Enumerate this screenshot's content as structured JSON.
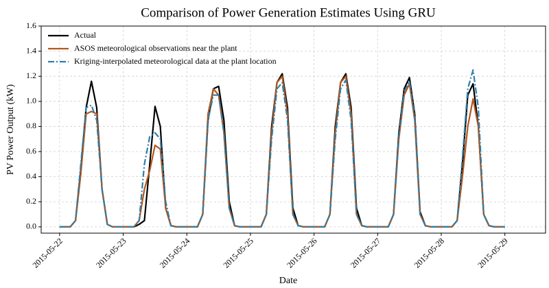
{
  "chart_data": {
    "type": "line",
    "title": "Comparison of Power Generation Estimates Using GRU",
    "xlabel": "Date",
    "ylabel": "PV Power Output (kW)",
    "xlim": [
      -0.29,
      7.64
    ],
    "ylim": [
      -0.05,
      1.6
    ],
    "xticks": [
      {
        "value": 0,
        "label": "2015-05-22"
      },
      {
        "value": 1,
        "label": "2015-05-23"
      },
      {
        "value": 2,
        "label": "2015-05-24"
      },
      {
        "value": 3,
        "label": "2015-05-25"
      },
      {
        "value": 4,
        "label": "2015-05-26"
      },
      {
        "value": 5,
        "label": "2015-05-27"
      },
      {
        "value": 6,
        "label": "2015-05-28"
      },
      {
        "value": 7,
        "label": "2015-05-29"
      }
    ],
    "yticks": [
      {
        "value": 0,
        "label": "0.0"
      },
      0.2,
      0.4,
      0.6,
      0.8,
      {
        "value": 1,
        "label": "1.0"
      },
      1.2,
      1.4,
      1.6
    ],
    "grid": true,
    "legend": "upper left",
    "x": [
      0,
      0.083,
      0.167,
      0.25,
      0.333,
      0.417,
      0.5,
      0.583,
      0.667,
      0.75,
      0.833,
      0.917,
      1,
      1.083,
      1.167,
      1.25,
      1.333,
      1.417,
      1.5,
      1.583,
      1.667,
      1.75,
      1.833,
      1.917,
      2,
      2.083,
      2.167,
      2.25,
      2.333,
      2.417,
      2.5,
      2.583,
      2.667,
      2.75,
      2.833,
      2.917,
      3,
      3.083,
      3.167,
      3.25,
      3.333,
      3.417,
      3.5,
      3.583,
      3.667,
      3.75,
      3.833,
      3.917,
      4,
      4.083,
      4.167,
      4.25,
      4.333,
      4.417,
      4.5,
      4.583,
      4.667,
      4.75,
      4.833,
      4.917,
      5,
      5.083,
      5.167,
      5.25,
      5.333,
      5.417,
      5.5,
      5.583,
      5.667,
      5.75,
      5.833,
      5.917,
      6,
      6.083,
      6.167,
      6.25,
      6.333,
      6.417,
      6.5,
      6.583,
      6.667,
      6.75,
      6.833,
      6.917,
      7
    ],
    "series": [
      {
        "name": "Actual",
        "color": "#000000",
        "linestyle": "solid",
        "values": [
          0,
          0,
          0,
          0.05,
          0.45,
          0.95,
          1.16,
          0.95,
          0.3,
          0.02,
          0,
          0,
          0,
          0,
          0,
          0.02,
          0.05,
          0.5,
          0.96,
          0.8,
          0.15,
          0.01,
          0,
          0,
          0,
          0,
          0,
          0.1,
          0.85,
          1.1,
          1.12,
          0.85,
          0.2,
          0.01,
          0,
          0,
          0,
          0,
          0,
          0.1,
          0.8,
          1.15,
          1.22,
          0.95,
          0.15,
          0.01,
          0,
          0,
          0,
          0,
          0,
          0.1,
          0.8,
          1.15,
          1.22,
          0.95,
          0.15,
          0.01,
          0,
          0,
          0,
          0,
          0,
          0.1,
          0.75,
          1.1,
          1.19,
          0.9,
          0.12,
          0.01,
          0,
          0,
          0,
          0,
          0,
          0.05,
          0.5,
          1.05,
          1.14,
          0.8,
          0.1,
          0.01,
          0,
          0,
          0
        ]
      },
      {
        "name": "ASOS meteorological observations near the plant",
        "color": "#b5561c",
        "linestyle": "solid",
        "values": [
          0,
          0,
          0,
          0.05,
          0.42,
          0.9,
          0.92,
          0.9,
          0.3,
          0.02,
          0,
          0,
          0,
          0,
          0,
          0.05,
          0.3,
          0.45,
          0.65,
          0.62,
          0.15,
          0.01,
          0,
          0,
          0,
          0,
          0,
          0.1,
          0.9,
          1.1,
          1.05,
          0.75,
          0.15,
          0.01,
          0,
          0,
          0,
          0,
          0,
          0.1,
          0.75,
          1.15,
          1.2,
          0.9,
          0.1,
          0.01,
          0,
          0,
          0,
          0,
          0,
          0.1,
          0.75,
          1.15,
          1.2,
          0.9,
          0.1,
          0.01,
          0,
          0,
          0,
          0,
          0,
          0.1,
          0.7,
          1.05,
          1.14,
          0.85,
          0.1,
          0.01,
          0,
          0,
          0,
          0,
          0,
          0.05,
          0.4,
          0.8,
          1.02,
          0.8,
          0.1,
          0.01,
          0,
          0,
          0
        ]
      },
      {
        "name": "Kriging-interpolated meteorological data at the plant location",
        "color": "#2e7ea8",
        "linestyle": "dashdot",
        "values": [
          0,
          0,
          0,
          0.05,
          0.5,
          0.95,
          0.97,
          0.85,
          0.3,
          0.02,
          0,
          0,
          0,
          0,
          0,
          0.05,
          0.5,
          0.72,
          0.75,
          0.7,
          0.2,
          0.01,
          0,
          0,
          0,
          0,
          0,
          0.1,
          0.85,
          1.05,
          1.05,
          0.75,
          0.15,
          0.01,
          0,
          0,
          0,
          0,
          0,
          0.1,
          0.7,
          1.1,
          1.15,
          0.85,
          0.1,
          0.01,
          0,
          0,
          0,
          0,
          0,
          0.1,
          0.7,
          1.1,
          1.17,
          0.85,
          0.1,
          0.01,
          0,
          0,
          0,
          0,
          0,
          0.1,
          0.72,
          1.08,
          1.16,
          0.88,
          0.1,
          0.01,
          0,
          0,
          0,
          0,
          0,
          0.05,
          0.55,
          1.1,
          1.25,
          0.95,
          0.1,
          0.01,
          0,
          0,
          0
        ]
      }
    ]
  }
}
